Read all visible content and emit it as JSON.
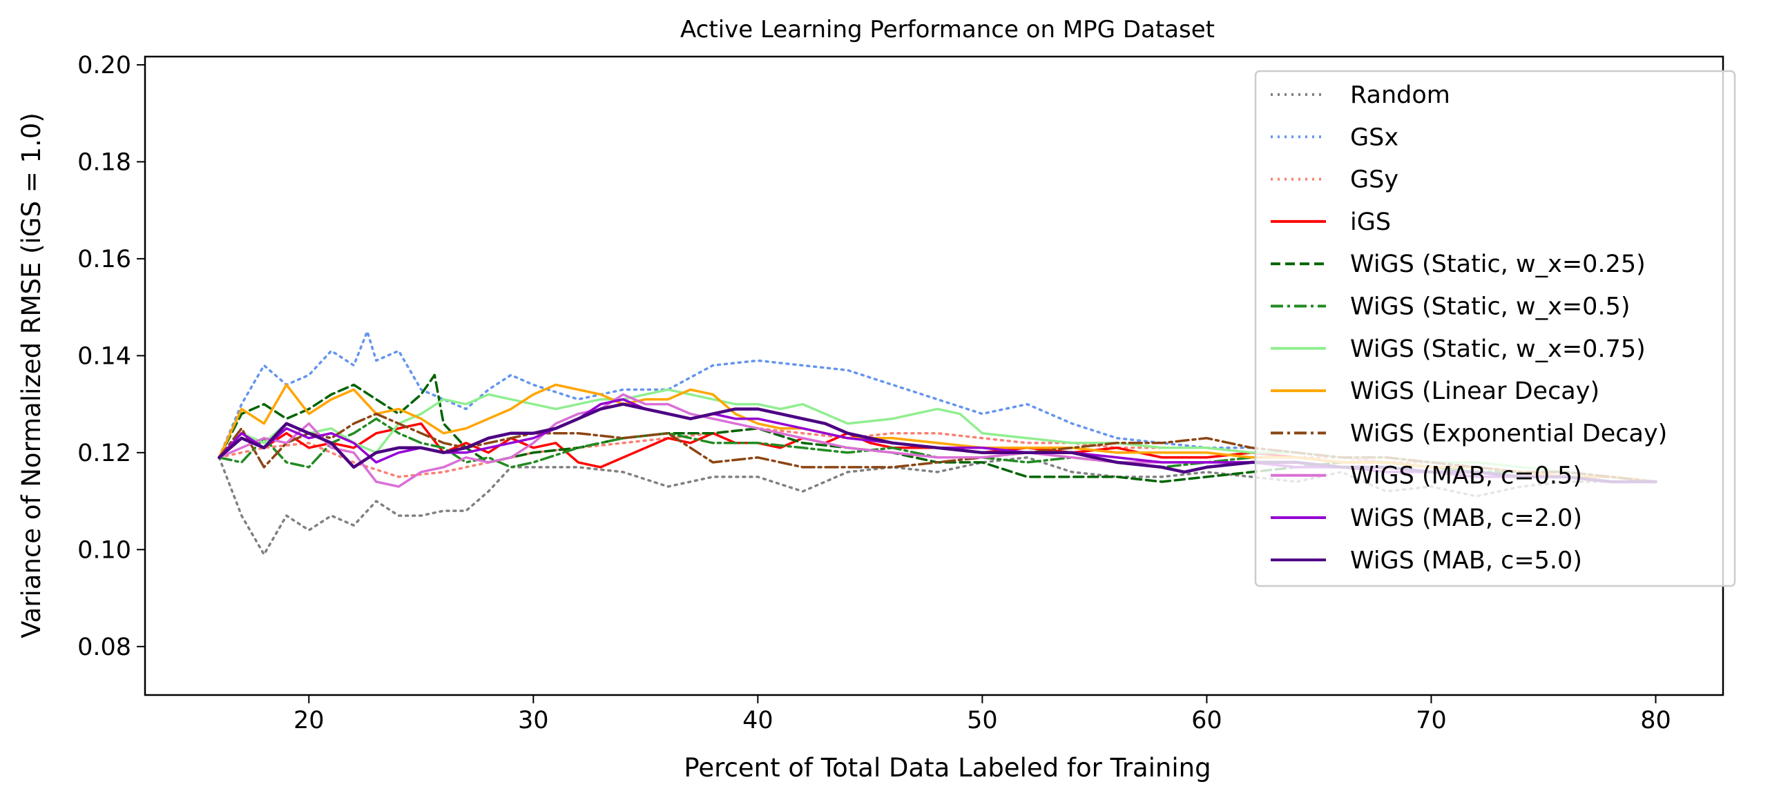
{
  "chart_data": {
    "type": "line",
    "title": "Active Learning Performance on MPG Dataset",
    "xlabel": "Percent of Total Data Labeled for Training",
    "ylabel": "Variance of Normalized RMSE (iGS = 1.0)",
    "xlim": [
      12.7,
      83.0
    ],
    "ylim": [
      0.07,
      0.2017
    ],
    "xticks": [
      20,
      30,
      40,
      50,
      60,
      70,
      80
    ],
    "yticks": [
      0.08,
      0.1,
      0.12,
      0.14,
      0.16,
      0.18,
      0.2
    ],
    "xtick_labels": [
      "20",
      "30",
      "40",
      "50",
      "60",
      "70",
      "80"
    ],
    "ytick_labels": [
      "0.08",
      "0.10",
      "0.12",
      "0.14",
      "0.16",
      "0.18",
      "0.20"
    ],
    "grid": false,
    "legend_position": "top-right",
    "series": [
      {
        "name": "Random",
        "color": "#808080",
        "dash": "dotted",
        "x": [
          16,
          17,
          18,
          19,
          20,
          21,
          22,
          23,
          24,
          25,
          26,
          27,
          28,
          29,
          30,
          32,
          34,
          36,
          38,
          40,
          42,
          44,
          46,
          48,
          50,
          52,
          54,
          56,
          58,
          60,
          62,
          64,
          66,
          68,
          70,
          72,
          74,
          76,
          78,
          80
        ],
        "y": [
          0.119,
          0.107,
          0.099,
          0.107,
          0.104,
          0.107,
          0.105,
          0.11,
          0.107,
          0.107,
          0.108,
          0.108,
          0.112,
          0.117,
          0.117,
          0.117,
          0.116,
          0.113,
          0.115,
          0.115,
          0.112,
          0.116,
          0.117,
          0.116,
          0.118,
          0.119,
          0.116,
          0.115,
          0.115,
          0.116,
          0.115,
          0.114,
          0.116,
          0.112,
          0.113,
          0.111,
          0.113,
          0.114,
          0.114,
          0.114
        ]
      },
      {
        "name": "GSx",
        "color": "#6495ED",
        "dash": "dotted",
        "x": [
          16,
          17,
          18,
          19,
          20,
          21,
          22,
          22.6,
          23,
          24,
          25,
          26,
          27,
          28,
          29,
          30,
          32,
          34,
          36,
          38,
          40,
          42,
          44,
          46,
          48,
          50,
          52,
          54,
          56,
          58,
          60,
          62,
          64,
          66,
          68,
          70,
          72,
          74,
          76,
          78,
          80
        ],
        "y": [
          0.119,
          0.13,
          0.138,
          0.134,
          0.136,
          0.141,
          0.138,
          0.145,
          0.139,
          0.141,
          0.133,
          0.131,
          0.129,
          0.133,
          0.136,
          0.134,
          0.131,
          0.133,
          0.133,
          0.138,
          0.139,
          0.138,
          0.137,
          0.134,
          0.131,
          0.128,
          0.13,
          0.126,
          0.123,
          0.122,
          0.121,
          0.121,
          0.12,
          0.119,
          0.118,
          0.117,
          0.116,
          0.116,
          0.115,
          0.115,
          0.114
        ]
      },
      {
        "name": "GSy",
        "color": "#FA8072",
        "dash": "dotted",
        "x": [
          16,
          18,
          20,
          22,
          24,
          26,
          28,
          30,
          32,
          34,
          36,
          38,
          40,
          42,
          44,
          46,
          48,
          50,
          52,
          54,
          56,
          58,
          60,
          62,
          64,
          66,
          68,
          70,
          72,
          74,
          76,
          78,
          80
        ],
        "y": [
          0.119,
          0.121,
          0.122,
          0.118,
          0.115,
          0.116,
          0.118,
          0.12,
          0.121,
          0.122,
          0.123,
          0.124,
          0.125,
          0.124,
          0.123,
          0.124,
          0.124,
          0.123,
          0.122,
          0.122,
          0.121,
          0.121,
          0.121,
          0.12,
          0.119,
          0.119,
          0.118,
          0.118,
          0.117,
          0.116,
          0.116,
          0.115,
          0.114
        ]
      },
      {
        "name": "iGS",
        "color": "#FF0000",
        "dash": "solid",
        "x": [
          16,
          17,
          18,
          19,
          20,
          21,
          22,
          23,
          24,
          25,
          26,
          27,
          28,
          29,
          30,
          31,
          32,
          33,
          34,
          35,
          36,
          37,
          38,
          39,
          40,
          41,
          42,
          43,
          44,
          45,
          46,
          48,
          50,
          52,
          54,
          56,
          58,
          60,
          62,
          64,
          66,
          68,
          70,
          72,
          74,
          76,
          78,
          80
        ],
        "y": [
          0.119,
          0.123,
          0.121,
          0.124,
          0.121,
          0.122,
          0.121,
          0.124,
          0.125,
          0.126,
          0.12,
          0.122,
          0.12,
          0.123,
          0.121,
          0.122,
          0.118,
          0.117,
          0.119,
          0.121,
          0.123,
          0.122,
          0.124,
          0.122,
          0.122,
          0.121,
          0.123,
          0.122,
          0.124,
          0.122,
          0.121,
          0.121,
          0.12,
          0.121,
          0.12,
          0.121,
          0.119,
          0.119,
          0.12,
          0.119,
          0.118,
          0.118,
          0.117,
          0.117,
          0.116,
          0.115,
          0.115,
          0.114
        ]
      },
      {
        "name": "WiGS (Static, w_x=0.25)",
        "color": "#006400",
        "dash": "dashed",
        "x": [
          16,
          17,
          18,
          19,
          20,
          21,
          22,
          23,
          24,
          25,
          25.6,
          26,
          27,
          28,
          29,
          30,
          32,
          34,
          36,
          38,
          40,
          42,
          44,
          46,
          48,
          50,
          52,
          54,
          56,
          58,
          60,
          62,
          64,
          66,
          68,
          70,
          72,
          74,
          76,
          78,
          80
        ],
        "y": [
          0.119,
          0.128,
          0.13,
          0.127,
          0.129,
          0.132,
          0.134,
          0.131,
          0.128,
          0.132,
          0.136,
          0.126,
          0.121,
          0.118,
          0.119,
          0.12,
          0.121,
          0.123,
          0.124,
          0.124,
          0.125,
          0.122,
          0.121,
          0.12,
          0.118,
          0.118,
          0.115,
          0.115,
          0.115,
          0.114,
          0.115,
          0.116,
          0.117,
          0.118,
          0.118,
          0.117,
          0.117,
          0.116,
          0.115,
          0.115,
          0.114
        ]
      },
      {
        "name": "WiGS (Static, w_x=0.5)",
        "color": "#228B22",
        "dash": "dashdot",
        "x": [
          16,
          17,
          18,
          19,
          20,
          21,
          22,
          23,
          24,
          25,
          26,
          27,
          28,
          29,
          30,
          32,
          34,
          36,
          38,
          40,
          42,
          44,
          46,
          48,
          50,
          52,
          54,
          56,
          58,
          60,
          62,
          64,
          66,
          68,
          70,
          72,
          74,
          76,
          78,
          80
        ],
        "y": [
          0.119,
          0.118,
          0.123,
          0.118,
          0.117,
          0.122,
          0.124,
          0.127,
          0.124,
          0.122,
          0.121,
          0.118,
          0.119,
          0.117,
          0.118,
          0.121,
          0.123,
          0.124,
          0.122,
          0.122,
          0.121,
          0.12,
          0.121,
          0.119,
          0.119,
          0.118,
          0.119,
          0.118,
          0.117,
          0.118,
          0.119,
          0.119,
          0.118,
          0.118,
          0.117,
          0.116,
          0.116,
          0.115,
          0.115,
          0.114
        ]
      },
      {
        "name": "WiGS (Static, w_x=0.75)",
        "color": "#90EE90",
        "dash": "solid",
        "x": [
          16,
          17,
          18,
          19,
          20,
          21,
          22,
          23,
          24,
          25,
          26,
          27,
          28,
          29,
          30,
          31,
          32,
          33,
          34,
          35,
          36,
          37,
          38,
          39,
          40,
          41,
          42,
          44,
          46,
          47,
          48,
          49,
          50,
          52,
          54,
          56,
          58,
          60,
          62,
          64,
          66,
          68,
          70,
          72,
          74,
          76,
          78,
          80
        ],
        "y": [
          0.119,
          0.124,
          0.122,
          0.126,
          0.124,
          0.125,
          0.122,
          0.12,
          0.126,
          0.128,
          0.131,
          0.13,
          0.132,
          0.131,
          0.13,
          0.129,
          0.13,
          0.131,
          0.131,
          0.132,
          0.133,
          0.132,
          0.131,
          0.13,
          0.13,
          0.129,
          0.13,
          0.126,
          0.127,
          0.128,
          0.129,
          0.128,
          0.124,
          0.123,
          0.122,
          0.122,
          0.121,
          0.121,
          0.12,
          0.12,
          0.119,
          0.119,
          0.118,
          0.118,
          0.117,
          0.116,
          0.115,
          0.114
        ]
      },
      {
        "name": "WiGS (Linear Decay)",
        "color": "#FFA500",
        "dash": "solid",
        "x": [
          16,
          17,
          18,
          19,
          20,
          21,
          22,
          23,
          24,
          25,
          26,
          27,
          28,
          29,
          30,
          31,
          32,
          33,
          34,
          35,
          36,
          37,
          38,
          39,
          40,
          41,
          42,
          43,
          44,
          46,
          48,
          50,
          52,
          54,
          56,
          58,
          60,
          62,
          64,
          66,
          68,
          70,
          72,
          74,
          76,
          78,
          80
        ],
        "y": [
          0.119,
          0.129,
          0.126,
          0.134,
          0.128,
          0.131,
          0.133,
          0.128,
          0.129,
          0.127,
          0.124,
          0.125,
          0.127,
          0.129,
          0.132,
          0.134,
          0.133,
          0.132,
          0.13,
          0.131,
          0.131,
          0.133,
          0.132,
          0.128,
          0.126,
          0.125,
          0.125,
          0.124,
          0.123,
          0.123,
          0.122,
          0.121,
          0.121,
          0.121,
          0.12,
          0.12,
          0.12,
          0.119,
          0.119,
          0.118,
          0.118,
          0.117,
          0.117,
          0.116,
          0.115,
          0.115,
          0.114
        ]
      },
      {
        "name": "WiGS (Exponential Decay)",
        "color": "#8B4513",
        "dash": "dashdot",
        "x": [
          16,
          17,
          18,
          19,
          20,
          21,
          22,
          23,
          24,
          25,
          26,
          27,
          28,
          29,
          30,
          32,
          34,
          36,
          38,
          40,
          42,
          44,
          46,
          48,
          50,
          52,
          54,
          56,
          58,
          60,
          62,
          64,
          66,
          68,
          70,
          72,
          74,
          76,
          78,
          80
        ],
        "y": [
          0.119,
          0.125,
          0.117,
          0.122,
          0.124,
          0.123,
          0.126,
          0.128,
          0.126,
          0.124,
          0.122,
          0.121,
          0.122,
          0.123,
          0.124,
          0.124,
          0.123,
          0.124,
          0.118,
          0.119,
          0.117,
          0.117,
          0.117,
          0.118,
          0.119,
          0.12,
          0.121,
          0.122,
          0.122,
          0.123,
          0.121,
          0.12,
          0.119,
          0.119,
          0.118,
          0.117,
          0.116,
          0.116,
          0.115,
          0.114
        ]
      },
      {
        "name": "WiGS (MAB, c=0.5)",
        "color": "#DA70D6",
        "dash": "solid",
        "x": [
          16,
          17,
          18,
          19,
          20,
          21,
          22,
          23,
          24,
          25,
          26,
          27,
          28,
          29,
          30,
          31,
          32,
          33,
          34,
          35,
          36,
          37,
          38,
          39,
          40,
          41,
          42,
          43,
          44,
          46,
          48,
          50,
          52,
          54,
          56,
          58,
          60,
          62,
          64,
          66,
          68,
          70,
          72,
          74,
          76,
          78,
          80
        ],
        "y": [
          0.119,
          0.121,
          0.123,
          0.122,
          0.126,
          0.121,
          0.12,
          0.114,
          0.113,
          0.116,
          0.117,
          0.119,
          0.118,
          0.119,
          0.122,
          0.126,
          0.128,
          0.129,
          0.132,
          0.13,
          0.13,
          0.128,
          0.127,
          0.126,
          0.125,
          0.124,
          0.123,
          0.122,
          0.121,
          0.12,
          0.119,
          0.119,
          0.12,
          0.119,
          0.118,
          0.118,
          0.118,
          0.118,
          0.117,
          0.117,
          0.117,
          0.116,
          0.116,
          0.115,
          0.115,
          0.114,
          0.114
        ]
      },
      {
        "name": "WiGS (MAB, c=2.0)",
        "color": "#9400D3",
        "dash": "solid",
        "x": [
          16,
          17,
          18,
          19,
          20,
          21,
          22,
          23,
          24,
          25,
          26,
          27,
          28,
          29,
          30,
          31,
          32,
          33,
          34,
          35,
          36,
          37,
          38,
          39,
          40,
          41,
          42,
          43,
          44,
          46,
          48,
          50,
          52,
          54,
          56,
          58,
          60,
          62,
          64,
          66,
          68,
          70,
          72,
          74,
          76,
          78,
          80
        ],
        "y": [
          0.119,
          0.124,
          0.121,
          0.125,
          0.123,
          0.124,
          0.122,
          0.118,
          0.12,
          0.121,
          0.12,
          0.12,
          0.121,
          0.122,
          0.123,
          0.125,
          0.127,
          0.13,
          0.131,
          0.129,
          0.128,
          0.127,
          0.128,
          0.127,
          0.127,
          0.126,
          0.125,
          0.124,
          0.123,
          0.122,
          0.121,
          0.121,
          0.12,
          0.12,
          0.119,
          0.118,
          0.118,
          0.118,
          0.117,
          0.117,
          0.116,
          0.116,
          0.115,
          0.115,
          0.115,
          0.114,
          0.114
        ]
      },
      {
        "name": "WiGS (MAB, c=5.0)",
        "color": "#4B0082",
        "dash": "solid",
        "x": [
          16,
          17,
          18,
          19,
          20,
          21,
          22,
          23,
          24,
          25,
          26,
          27,
          28,
          29,
          30,
          31,
          32,
          33,
          34,
          35,
          36,
          37,
          38,
          39,
          40,
          41,
          42,
          43,
          44,
          45,
          46,
          48,
          50,
          52,
          54,
          56,
          58,
          59,
          60,
          62,
          64,
          66,
          68,
          70,
          72,
          74,
          76,
          78,
          80
        ],
        "y": [
          0.119,
          0.123,
          0.121,
          0.126,
          0.124,
          0.122,
          0.117,
          0.12,
          0.121,
          0.121,
          0.12,
          0.121,
          0.123,
          0.124,
          0.124,
          0.125,
          0.127,
          0.129,
          0.13,
          0.129,
          0.128,
          0.127,
          0.128,
          0.129,
          0.129,
          0.128,
          0.127,
          0.126,
          0.124,
          0.123,
          0.122,
          0.121,
          0.12,
          0.12,
          0.12,
          0.118,
          0.117,
          0.116,
          0.117,
          0.118,
          0.118,
          0.117,
          0.117,
          0.116,
          0.116,
          0.115,
          0.115,
          0.114,
          0.114
        ]
      }
    ]
  }
}
